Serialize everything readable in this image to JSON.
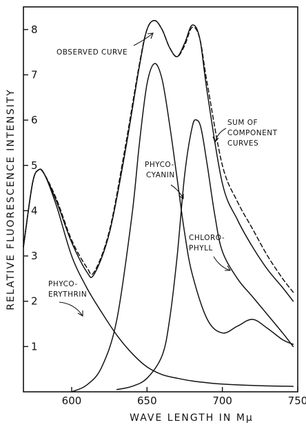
{
  "chart_data": {
    "type": "line",
    "title": "",
    "xlabel": "WAVE LENGTH IN Mμ",
    "ylabel": "RELATIVE FLUORESCENCE INTENSITY",
    "xlim": [
      568,
      750
    ],
    "ylim": [
      0,
      8.5
    ],
    "x_ticks": [
      600,
      650,
      700,
      750
    ],
    "y_ticks": [
      1,
      2,
      3,
      4,
      5,
      6,
      7,
      8
    ],
    "grid": false,
    "legend": "none",
    "annotations": [
      {
        "text": [
          "OBSERVED CURVE"
        ]
      },
      {
        "text": [
          "SUM OF",
          "COMPONENT",
          "CURVES"
        ]
      },
      {
        "text": [
          "PHYCO-",
          "CYANIN"
        ]
      },
      {
        "text": [
          "CHLORO-",
          "PHYLL"
        ]
      },
      {
        "text": [
          "PHYCO-",
          "ERYTHRIN"
        ]
      }
    ],
    "series": [
      {
        "style": "solid",
        "x": [
          568,
          574,
          578,
          582,
          590,
          600,
          610,
          615,
          625,
          635,
          645,
          650,
          655,
          660,
          665,
          670,
          675,
          680,
          685,
          690,
          700,
          710,
          720,
          730,
          740,
          747
        ],
        "y": [
          3.2,
          4.6,
          4.9,
          4.8,
          4.2,
          3.3,
          2.65,
          2.6,
          3.5,
          5.2,
          7.2,
          8.0,
          8.2,
          8.0,
          7.6,
          7.4,
          7.7,
          8.1,
          7.8,
          6.6,
          4.6,
          3.8,
          3.2,
          2.7,
          2.3,
          2.0
        ]
      },
      {
        "style": "dashed",
        "x": [
          568,
          574,
          578,
          582,
          590,
          600,
          610,
          615,
          625,
          635,
          645,
          650,
          655,
          660,
          665,
          670,
          675,
          680,
          685,
          690,
          700,
          710,
          720,
          730,
          740,
          747
        ],
        "y": [
          3.2,
          4.6,
          4.9,
          4.8,
          4.25,
          3.35,
          2.75,
          2.65,
          3.55,
          5.3,
          7.25,
          8.0,
          8.2,
          8.0,
          7.6,
          7.4,
          7.65,
          8.05,
          7.8,
          6.8,
          5.0,
          4.2,
          3.6,
          3.0,
          2.5,
          2.2
        ]
      },
      {
        "style": "solid",
        "x": [
          568,
          574,
          578,
          582,
          590,
          600,
          610,
          620,
          630,
          640,
          650,
          660,
          670,
          680,
          690,
          700,
          720,
          747
        ],
        "y": [
          3.2,
          4.6,
          4.9,
          4.8,
          4.1,
          3.0,
          2.3,
          1.75,
          1.25,
          0.85,
          0.55,
          0.38,
          0.3,
          0.24,
          0.2,
          0.17,
          0.14,
          0.12
        ]
      },
      {
        "style": "solid",
        "x": [
          600,
          610,
          620,
          630,
          640,
          645,
          650,
          655,
          660,
          665,
          670,
          675,
          680,
          690,
          700,
          710,
          720,
          730,
          740,
          747
        ],
        "y": [
          0.0,
          0.15,
          0.55,
          1.6,
          3.9,
          5.5,
          6.8,
          7.25,
          6.9,
          5.9,
          4.7,
          3.5,
          2.6,
          1.6,
          1.3,
          1.45,
          1.6,
          1.4,
          1.15,
          1.05
        ]
      },
      {
        "style": "solid",
        "x": [
          630,
          640,
          650,
          660,
          665,
          670,
          675,
          680,
          683,
          686,
          690,
          695,
          700,
          710,
          720,
          730,
          740,
          747
        ],
        "y": [
          0.05,
          0.12,
          0.3,
          0.8,
          1.6,
          3.0,
          4.8,
          5.85,
          6.0,
          5.8,
          5.0,
          3.9,
          3.1,
          2.5,
          2.1,
          1.7,
          1.3,
          1.0
        ]
      }
    ]
  }
}
